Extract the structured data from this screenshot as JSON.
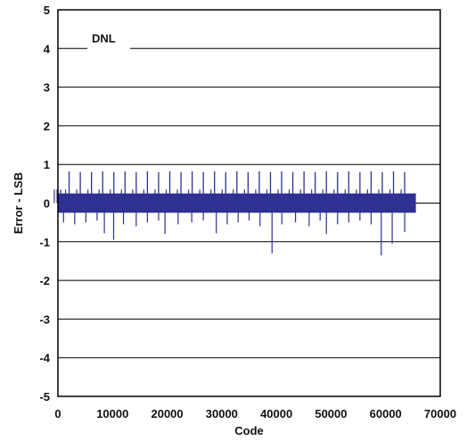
{
  "chart_data": {
    "type": "line",
    "xlabel": "Code",
    "ylabel": "Error - LSB",
    "xlim": [
      0,
      70000
    ],
    "ylim": [
      -5,
      5
    ],
    "x_ticks": [
      "0",
      "10000",
      "20000",
      "30000",
      "40000",
      "50000",
      "60000",
      "70000"
    ],
    "y_ticks": [
      "5",
      "4",
      "3",
      "2",
      "1",
      "0",
      "-1",
      "-2",
      "-3",
      "-4",
      "-5"
    ],
    "grid": "horizontal",
    "legend": "top-left",
    "series": [
      {
        "name": "DNL",
        "color": "#2e3192",
        "band": [
          -0.25,
          0.25
        ],
        "band_x": [
          0,
          65535
        ],
        "positive_spikes": [
          {
            "x": 0,
            "y": 0.35
          },
          {
            "x": 500,
            "y": 0.35
          },
          {
            "x": 2048,
            "y": 0.82
          },
          {
            "x": 4096,
            "y": 0.8
          },
          {
            "x": 6144,
            "y": 0.8
          },
          {
            "x": 8192,
            "y": 0.82
          },
          {
            "x": 10240,
            "y": 0.8
          },
          {
            "x": 12288,
            "y": 0.82
          },
          {
            "x": 14336,
            "y": 0.8
          },
          {
            "x": 16384,
            "y": 0.82
          },
          {
            "x": 18432,
            "y": 0.8
          },
          {
            "x": 20480,
            "y": 0.82
          },
          {
            "x": 22528,
            "y": 0.8
          },
          {
            "x": 24576,
            "y": 0.82
          },
          {
            "x": 26624,
            "y": 0.8
          },
          {
            "x": 28672,
            "y": 0.82
          },
          {
            "x": 30720,
            "y": 0.8
          },
          {
            "x": 32768,
            "y": 0.82
          },
          {
            "x": 34816,
            "y": 0.8
          },
          {
            "x": 36864,
            "y": 0.82
          },
          {
            "x": 38912,
            "y": 0.8
          },
          {
            "x": 40960,
            "y": 0.82
          },
          {
            "x": 43008,
            "y": 0.8
          },
          {
            "x": 45056,
            "y": 0.82
          },
          {
            "x": 47104,
            "y": 0.8
          },
          {
            "x": 49152,
            "y": 0.82
          },
          {
            "x": 51200,
            "y": 0.8
          },
          {
            "x": 53248,
            "y": 0.82
          },
          {
            "x": 55296,
            "y": 0.8
          },
          {
            "x": 57344,
            "y": 0.82
          },
          {
            "x": 59392,
            "y": 0.8
          },
          {
            "x": 61440,
            "y": 0.82
          },
          {
            "x": 63488,
            "y": 0.8
          }
        ],
        "negative_spikes": [
          {
            "x": 1024,
            "y": -0.5
          },
          {
            "x": 3072,
            "y": -0.55
          },
          {
            "x": 5120,
            "y": -0.5
          },
          {
            "x": 7168,
            "y": -0.45
          },
          {
            "x": 8500,
            "y": -0.78
          },
          {
            "x": 10200,
            "y": -0.95
          },
          {
            "x": 12000,
            "y": -0.55
          },
          {
            "x": 14336,
            "y": -0.6
          },
          {
            "x": 16384,
            "y": -0.5
          },
          {
            "x": 18432,
            "y": -0.45
          },
          {
            "x": 19600,
            "y": -0.8
          },
          {
            "x": 22000,
            "y": -0.55
          },
          {
            "x": 24500,
            "y": -0.5
          },
          {
            "x": 26624,
            "y": -0.45
          },
          {
            "x": 29000,
            "y": -0.78
          },
          {
            "x": 31000,
            "y": -0.55
          },
          {
            "x": 33000,
            "y": -0.5
          },
          {
            "x": 35000,
            "y": -0.45
          },
          {
            "x": 37000,
            "y": -0.6
          },
          {
            "x": 39200,
            "y": -1.3
          },
          {
            "x": 41000,
            "y": -0.55
          },
          {
            "x": 43500,
            "y": -0.5
          },
          {
            "x": 46000,
            "y": -0.6
          },
          {
            "x": 48000,
            "y": -0.45
          },
          {
            "x": 49152,
            "y": -0.8
          },
          {
            "x": 51200,
            "y": -0.55
          },
          {
            "x": 53248,
            "y": -0.5
          },
          {
            "x": 55296,
            "y": -0.45
          },
          {
            "x": 57344,
            "y": -0.55
          },
          {
            "x": 59200,
            "y": -1.35
          },
          {
            "x": 61200,
            "y": -1.05
          },
          {
            "x": 63500,
            "y": -0.75
          }
        ]
      }
    ]
  }
}
